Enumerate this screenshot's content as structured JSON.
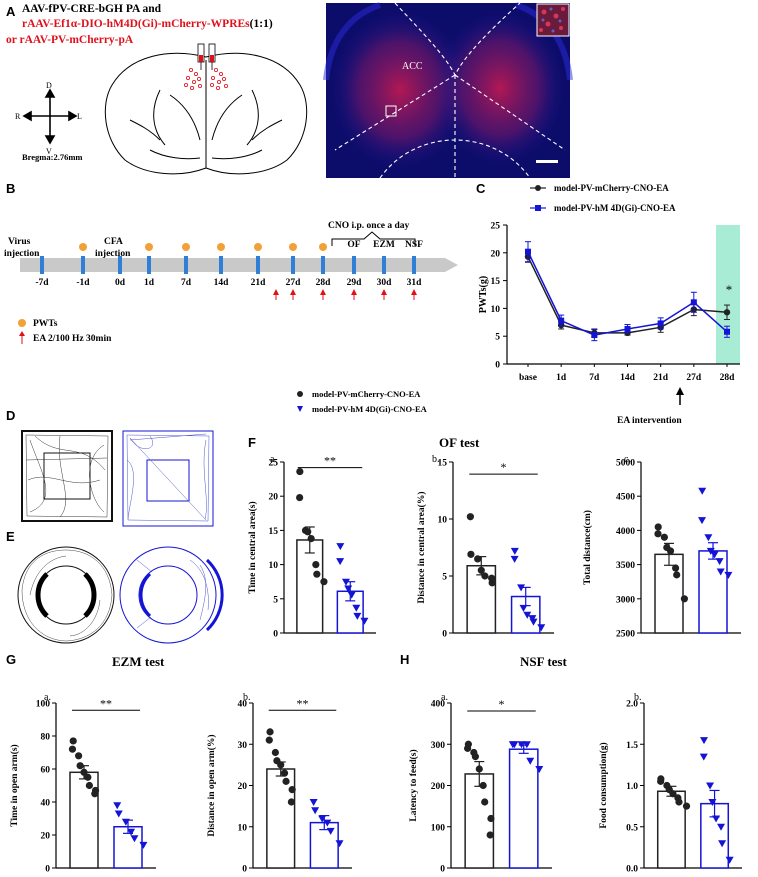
{
  "panelA": {
    "letter": "A",
    "line1": "AAV-fPV-CRE-bGH PA and",
    "line2": "rAAV-Ef1α-DIO-hM4D(Gi)-mCherry-WPREs",
    "line2_suffix": "(1:1)",
    "line3": "or  rAAV-PV-mCherry-pA",
    "compass": {
      "d": "D",
      "v": "V",
      "r": "R",
      "l": "L"
    },
    "bregma": "Bregma:2.76mm",
    "acc_label": "ACC"
  },
  "panelB": {
    "letter": "B",
    "virus_label_1": "Virus",
    "virus_label_2": "injection",
    "cfa_label_1": "CFA",
    "cfa_label_2": "injection",
    "cno_label": "CNO i.p. once a day",
    "tests": [
      "OF",
      "EZM",
      "NSF"
    ],
    "days": [
      "-7d",
      "-1d",
      "0d",
      "1d",
      "7d",
      "14d",
      "21d",
      "27d",
      "28d",
      "29d",
      "30d",
      "31d"
    ],
    "legend_pwts": "PWTs",
    "legend_ea": "EA 2/100 Hz  30min"
  },
  "panelC": {
    "letter": "C",
    "legend_1": "model-PV-mCherry-CNO-EA",
    "legend_2": "model-PV-hM 4D(Gi)-CNO-EA",
    "star": "*",
    "arrow_label": "EA intervention"
  },
  "panelF": {
    "letter": "F",
    "title": "OF test",
    "legend_1": "model-PV-mCherry-CNO-EA",
    "legend_2": "model-PV-hM 4D(Gi)-CNO-EA"
  },
  "panelD": {
    "letter": "D"
  },
  "panelE": {
    "letter": "E"
  },
  "panelG": {
    "letter": "G",
    "title": "EZM test"
  },
  "panelH": {
    "letter": "H",
    "title": "NSF test"
  },
  "colors": {
    "red": "#e0101b",
    "blue": "#1414d6",
    "black": "#222222",
    "green": "#a8ecd6",
    "orange": "#f2a03a"
  },
  "chart_data": [
    {
      "id": "C",
      "type": "line",
      "title": "",
      "xlabel": "",
      "ylabel": "PWTs(g)",
      "categories": [
        "base",
        "1d",
        "7d",
        "14d",
        "21d",
        "27d",
        "28d"
      ],
      "ylim": [
        0,
        25
      ],
      "yticks": [
        0,
        5,
        10,
        15,
        20,
        25
      ],
      "series": [
        {
          "name": "model-PV-mCherry-CNO-EA",
          "values": [
            19.3,
            7.0,
            5.6,
            5.6,
            6.6,
            9.8,
            9.3
          ],
          "err": [
            1.0,
            0.7,
            0.7,
            0.4,
            0.9,
            1.1,
            1.3
          ]
        },
        {
          "name": "model-PV-hM 4D(Gi)-CNO-EA",
          "values": [
            20.2,
            7.8,
            5.2,
            6.3,
            7.3,
            11.1,
            5.8
          ],
          "err": [
            1.8,
            1.0,
            1.0,
            0.8,
            1.0,
            1.8,
            1.0
          ]
        }
      ],
      "annotations": [
        "*"
      ]
    },
    {
      "id": "Fa",
      "type": "bar",
      "sub": "a.",
      "ylabel": "Time in central area(s)",
      "ylim": [
        0,
        25
      ],
      "yticks": [
        0,
        5,
        10,
        15,
        20,
        25
      ],
      "sig": "**",
      "series": [
        {
          "name": "model-PV-mCherry-CNO-EA",
          "mean": 13.6,
          "sem": 1.9,
          "points": [
            23.6,
            19.8,
            15.0,
            14.8,
            13.8,
            10.0,
            8.6,
            7.5
          ]
        },
        {
          "name": "model-PV-hM 4D(Gi)-CNO-EA",
          "mean": 6.1,
          "sem": 1.4,
          "points": [
            12.7,
            10.5,
            7.5,
            6.5,
            5.6,
            3.7,
            2.5,
            1.8
          ]
        }
      ]
    },
    {
      "id": "Fb",
      "type": "bar",
      "sub": "b.",
      "ylabel": "Distance in central area(%)",
      "ylim": [
        0,
        15
      ],
      "yticks": [
        0,
        5,
        10,
        15
      ],
      "sig": "*",
      "series": [
        {
          "name": "model-PV-mCherry-CNO-EA",
          "mean": 5.9,
          "sem": 0.8,
          "points": [
            10.2,
            6.9,
            6.5,
            5.5,
            5.0,
            4.8,
            4.4
          ]
        },
        {
          "name": "model-PV-hM 4D(Gi)-CNO-EA",
          "mean": 3.2,
          "sem": 0.8,
          "points": [
            7.2,
            6.5,
            4.0,
            2.2,
            1.6,
            1.3,
            1.0,
            0.5
          ]
        }
      ]
    },
    {
      "id": "Fc",
      "type": "bar",
      "sub": "c.",
      "ylabel": "Total distance(cm)",
      "ylim": [
        2500,
        5000
      ],
      "yticks": [
        2500,
        3000,
        3500,
        4000,
        4500,
        5000
      ],
      "sig": "",
      "series": [
        {
          "name": "model-PV-mCherry-CNO-EA",
          "mean": 3650,
          "sem": 160,
          "points": [
            4050,
            3950,
            3900,
            3750,
            3700,
            3450,
            3350,
            3000
          ]
        },
        {
          "name": "model-PV-hM 4D(Gi)-CNO-EA",
          "mean": 3700,
          "sem": 120,
          "points": [
            4580,
            4150,
            3900,
            3700,
            3650,
            3550,
            3400,
            3350
          ]
        }
      ]
    },
    {
      "id": "Ga",
      "type": "bar",
      "sub": "a.",
      "ylabel": "Time in open arm(s)",
      "ylim": [
        0,
        100
      ],
      "yticks": [
        0,
        20,
        40,
        60,
        80,
        100
      ],
      "sig": "**",
      "series": [
        {
          "name": "model-PV-mCherry-CNO-EA",
          "mean": 58,
          "sem": 4,
          "points": [
            77,
            72,
            68,
            62,
            58,
            55,
            50,
            47,
            45
          ]
        },
        {
          "name": "model-PV-hM 4D(Gi)-CNO-EA",
          "mean": 25,
          "sem": 4,
          "points": [
            38,
            33,
            28,
            22,
            18,
            14
          ]
        }
      ]
    },
    {
      "id": "Gb",
      "type": "bar",
      "sub": "b.",
      "ylabel": "Distance in open arm(%)",
      "ylim": [
        0,
        40
      ],
      "yticks": [
        0,
        10,
        20,
        30,
        40
      ],
      "sig": "**",
      "series": [
        {
          "name": "model-PV-mCherry-CNO-EA",
          "mean": 24,
          "sem": 1.7,
          "points": [
            33,
            31,
            28,
            26,
            25,
            23,
            21,
            19,
            16
          ]
        },
        {
          "name": "model-PV-hM 4D(Gi)-CNO-EA",
          "mean": 11,
          "sem": 1.7,
          "points": [
            16,
            14,
            12,
            11,
            9,
            6
          ]
        }
      ]
    },
    {
      "id": "Ha",
      "type": "bar",
      "sub": "a.",
      "ylabel": "Latency to feed(s)",
      "ylim": [
        0,
        400
      ],
      "yticks": [
        0,
        100,
        200,
        300,
        400
      ],
      "sig": "*",
      "series": [
        {
          "name": "model-PV-mCherry-CNO-EA",
          "mean": 228,
          "sem": 30,
          "points": [
            300,
            290,
            280,
            270,
            240,
            200,
            160,
            120,
            80
          ]
        },
        {
          "name": "model-PV-hM 4D(Gi)-CNO-EA",
          "mean": 288,
          "sem": 10,
          "points": [
            300,
            300,
            300,
            300,
            260,
            240
          ]
        }
      ]
    },
    {
      "id": "Hb",
      "type": "bar",
      "sub": "b.",
      "ylabel": "Food consumption(g)",
      "ylim": [
        0,
        2.0
      ],
      "yticks": [
        0.0,
        0.5,
        1.0,
        1.5,
        2.0
      ],
      "sig": "",
      "series": [
        {
          "name": "model-PV-mCherry-CNO-EA",
          "mean": 0.93,
          "sem": 0.06,
          "points": [
            1.08,
            1.05,
            1.0,
            0.95,
            0.9,
            0.85,
            0.8,
            0.75
          ]
        },
        {
          "name": "model-PV-hM 4D(Gi)-CNO-EA",
          "mean": 0.78,
          "sem": 0.16,
          "points": [
            1.55,
            1.35,
            1.0,
            0.8,
            0.6,
            0.5,
            0.3,
            0.1
          ]
        }
      ]
    }
  ]
}
